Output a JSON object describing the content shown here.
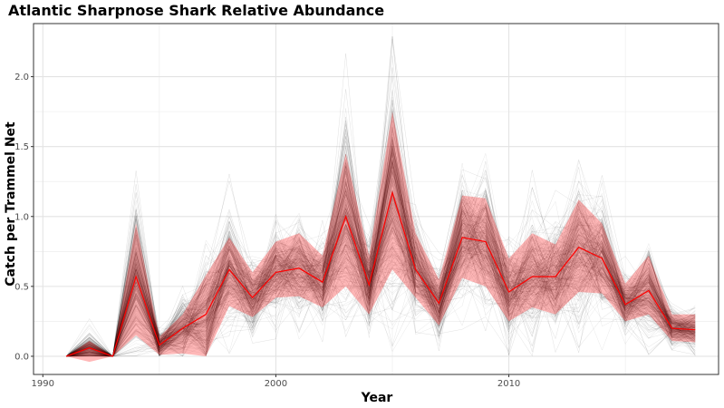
{
  "chart_data": {
    "type": "line",
    "title": "Atlantic Sharpnose Shark Relative Abundance",
    "xlabel": "Year",
    "ylabel": "Catch per Trammel Net",
    "xlim": [
      1989.6,
      2019.0
    ],
    "ylim": [
      -0.13,
      2.38
    ],
    "x_ticks": [
      1990,
      2000,
      2010
    ],
    "x_tick_labels": [
      "1990",
      "2000",
      "2010"
    ],
    "y_ticks": [
      0.0,
      0.5,
      1.0,
      1.5,
      2.0
    ],
    "y_tick_labels": [
      "0.0",
      "0.5",
      "1.0",
      "1.5",
      "2.0"
    ],
    "grid": true,
    "legend": "none",
    "colors": {
      "estimate_line": "#ff0000",
      "ci_ribbon": "#ff0000",
      "simulation_lines": "#000000",
      "grid": "#ebebeb",
      "panel_border": "#333333"
    },
    "x": [
      1991,
      1992,
      1993,
      1994,
      1995,
      1996,
      1997,
      1998,
      1999,
      2000,
      2001,
      2002,
      2003,
      2004,
      2005,
      2006,
      2007,
      2008,
      2009,
      2010,
      2011,
      2012,
      2013,
      2014,
      2015,
      2016,
      2017,
      2018
    ],
    "series": [
      {
        "values": [
          0.0,
          0.06,
          0.0,
          0.57,
          0.08,
          0.2,
          0.3,
          0.62,
          0.42,
          0.6,
          0.63,
          0.53,
          1.0,
          0.51,
          1.17,
          0.62,
          0.38,
          0.85,
          0.82,
          0.46,
          0.57,
          0.57,
          0.78,
          0.7,
          0.37,
          0.47,
          0.2,
          0.19
        ]
      }
    ],
    "ci_lower": [
      0.0,
      -0.04,
      0.0,
      0.15,
      0.01,
      0.02,
      0.0,
      0.36,
      0.28,
      0.42,
      0.43,
      0.35,
      0.5,
      0.3,
      0.62,
      0.42,
      0.22,
      0.56,
      0.5,
      0.25,
      0.35,
      0.3,
      0.46,
      0.45,
      0.25,
      0.3,
      0.11,
      0.1
    ],
    "ci_upper": [
      0.0,
      0.11,
      0.0,
      0.95,
      0.14,
      0.3,
      0.58,
      0.85,
      0.6,
      0.82,
      0.88,
      0.72,
      1.45,
      0.72,
      1.75,
      0.88,
      0.55,
      1.15,
      1.13,
      0.7,
      0.88,
      0.8,
      1.12,
      0.95,
      0.52,
      0.72,
      0.3,
      0.3
    ]
  }
}
